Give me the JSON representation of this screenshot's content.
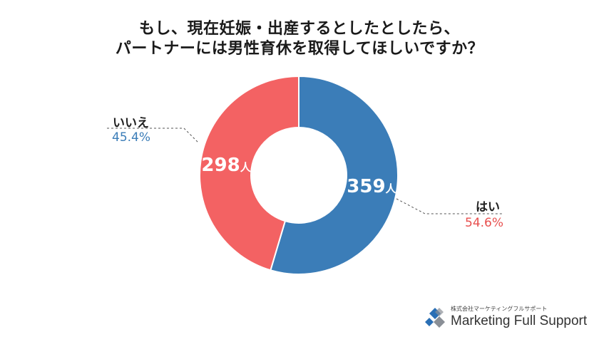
{
  "chart_data": {
    "type": "pie",
    "title_line1": "もし、現在妊娠・出産するとしたとしたら、",
    "title_line2": "パートナーには男性育休を取得してほしいですか？",
    "slices": [
      {
        "name": "はい",
        "count": 359,
        "count_label": "359",
        "unit": "人",
        "percent": 54.6,
        "percent_label": "54.6%",
        "color": "#3b7db8",
        "label_color": "#e8504f"
      },
      {
        "name": "いいえ",
        "count": 298,
        "count_label": "298",
        "unit": "人",
        "percent": 45.4,
        "percent_label": "45.4%",
        "color": "#f36263",
        "label_color": "#3b7db8"
      }
    ]
  },
  "logo": {
    "subtitle": "株式会社マーケティングフルサポート",
    "name": "Marketing Full Support",
    "colors": [
      "#2a6fb5",
      "#8a8f96"
    ]
  }
}
